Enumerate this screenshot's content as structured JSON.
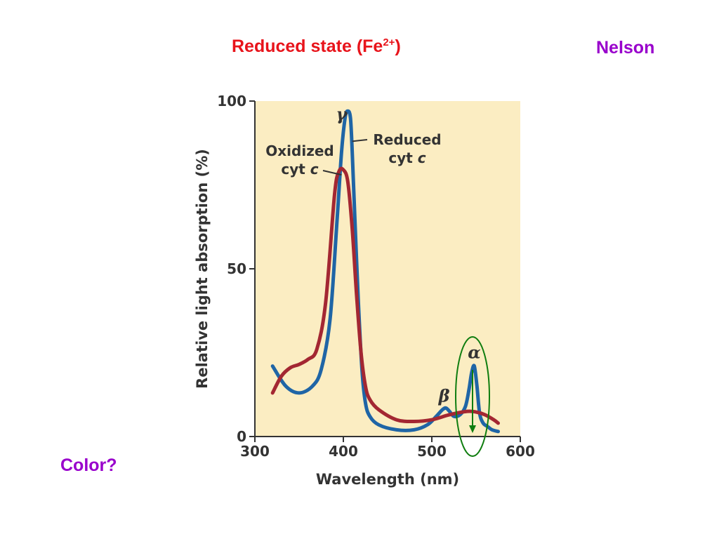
{
  "slide": {
    "title_main": "Reduced state (Fe",
    "title_sup": "2+",
    "title_close": ")",
    "author": "Nelson",
    "question": "Color?"
  },
  "colors": {
    "title": "#e8141b",
    "author": "#9900cc",
    "question": "#9900cc",
    "plot_background": "#fbedc2",
    "reduced_line": "#1f65a6",
    "oxidized_line": "#a32732",
    "highlight": "#0f7d0f"
  },
  "chart_data": {
    "type": "line",
    "xlabel": "Wavelength (nm)",
    "ylabel": "Relative light absorption (%)",
    "xlim": [
      300,
      600
    ],
    "ylim": [
      0,
      100
    ],
    "xticks": [
      300,
      400,
      500,
      600
    ],
    "yticks": [
      0,
      50,
      100
    ],
    "grid": false,
    "series": [
      {
        "name": "Reduced cyt c",
        "x": [
          320,
          335,
          350,
          365,
          375,
          385,
          393,
          398,
          402,
          405,
          408,
          410,
          413,
          417,
          421,
          425,
          430,
          440,
          460,
          480,
          495,
          505,
          512,
          516,
          520,
          525,
          532,
          538,
          542,
          545,
          548,
          551,
          554,
          558,
          563,
          568,
          575
        ],
        "y": [
          21,
          15,
          13,
          15,
          20,
          35,
          65,
          85,
          95,
          97,
          95,
          85,
          65,
          40,
          20,
          10,
          6,
          3.5,
          2,
          2,
          3.5,
          6,
          8,
          8.5,
          7.5,
          6,
          6.5,
          9,
          14,
          19,
          21,
          15,
          7,
          4,
          3,
          2,
          1.5
        ]
      },
      {
        "name": "Oxidized cyt c",
        "x": [
          320,
          330,
          340,
          350,
          360,
          370,
          380,
          390,
          395,
          400,
          405,
          410,
          415,
          420,
          425,
          430,
          440,
          460,
          480,
          500,
          520,
          540,
          550,
          560,
          570,
          575
        ],
        "y": [
          13,
          18,
          20.5,
          21.5,
          23,
          26,
          40,
          72,
          79,
          79.5,
          76,
          62,
          42,
          25,
          15,
          11,
          8,
          5,
          4.5,
          5,
          6.5,
          7.5,
          7.3,
          6.5,
          5,
          4
        ]
      }
    ],
    "annotations": [
      {
        "text": "γ",
        "x": 398,
        "y": 96
      },
      {
        "text": "β",
        "x": 514,
        "y": 12
      },
      {
        "text": "α",
        "x": 548,
        "y": 25
      },
      {
        "line1": "Oxidized",
        "line2": "cyt ",
        "italic": "c",
        "target_x": 398,
        "target_y": 78
      },
      {
        "line1": "Reduced",
        "line2": "cyt ",
        "italic": "c",
        "target_x": 410,
        "target_y": 88
      }
    ],
    "highlight": {
      "shape": "ellipse",
      "around": "α peak",
      "arrow": "down"
    }
  }
}
